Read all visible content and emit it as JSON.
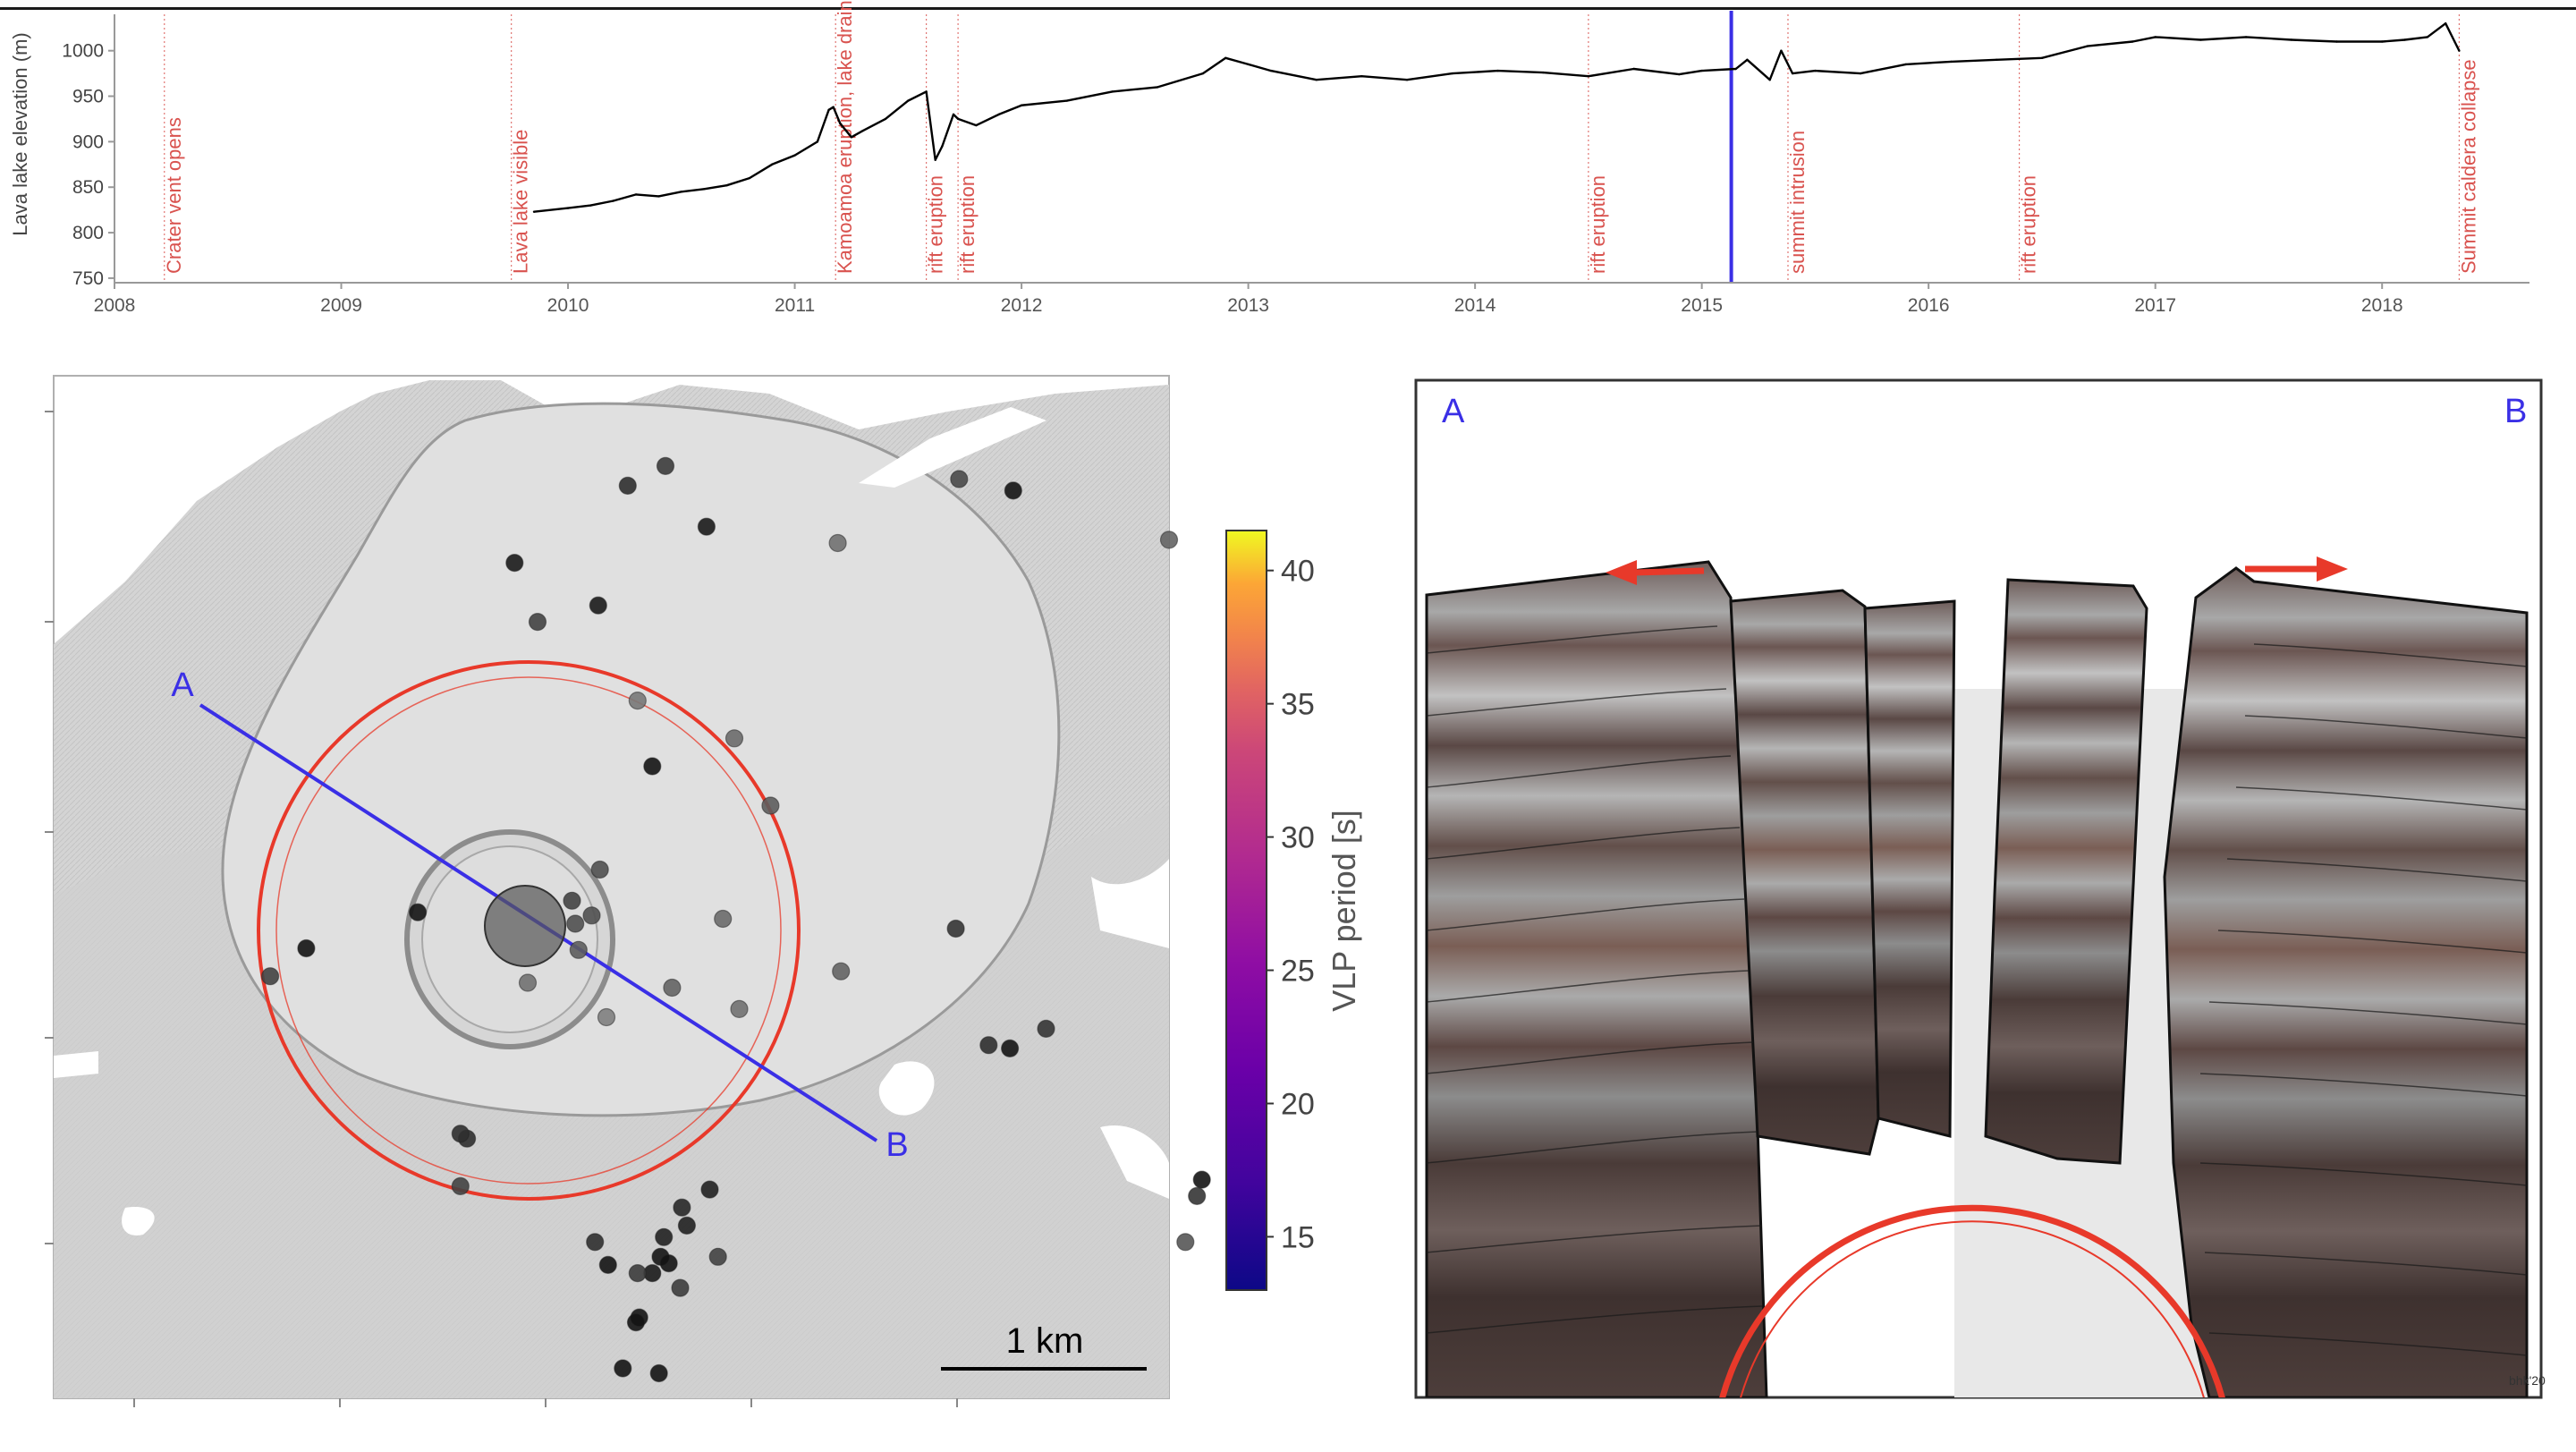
{
  "chart_data": [
    {
      "type": "line",
      "ylabel": "Lava lake elevation (m)",
      "xlabel": "",
      "xlim": [
        2008,
        2018.65
      ],
      "ylim": [
        745,
        1040
      ],
      "xticks": [
        "2008",
        "2009",
        "2010",
        "2011",
        "2012",
        "2013",
        "2014",
        "2015",
        "2016",
        "2017",
        "2018"
      ],
      "yticks": [
        "750",
        "800",
        "850",
        "900",
        "950",
        "1000"
      ],
      "series_color": "#000000",
      "series": [
        {
          "x": [
            2009.85,
            2010.0,
            2010.1,
            2010.2,
            2010.3,
            2010.4,
            2010.5,
            2010.6,
            2010.7,
            2010.8,
            2010.9,
            2011.0,
            2011.1,
            2011.15,
            2011.17,
            2011.2,
            2011.25,
            2011.3,
            2011.4,
            2011.5,
            2011.58,
            2011.62,
            2011.65,
            2011.7,
            2011.72,
            2011.8,
            2011.9,
            2012.0,
            2012.2,
            2012.4,
            2012.6,
            2012.8,
            2012.9,
            2013.0,
            2013.1,
            2013.3,
            2013.5,
            2013.7,
            2013.9,
            2014.1,
            2014.3,
            2014.5,
            2014.7,
            2014.9,
            2015.0,
            2015.15,
            2015.2,
            2015.3,
            2015.35,
            2015.4,
            2015.5,
            2015.7,
            2015.9,
            2016.1,
            2016.3,
            2016.5,
            2016.7,
            2016.9,
            2017.0,
            2017.2,
            2017.4,
            2017.6,
            2017.8,
            2018.0,
            2018.1,
            2018.2,
            2018.28,
            2018.32,
            2018.34
          ],
          "y": [
            823,
            827,
            830,
            835,
            842,
            840,
            845,
            848,
            852,
            860,
            875,
            885,
            900,
            935,
            938,
            920,
            905,
            912,
            925,
            945,
            955,
            880,
            895,
            930,
            925,
            918,
            930,
            940,
            945,
            955,
            960,
            975,
            992,
            985,
            978,
            968,
            972,
            968,
            975,
            978,
            976,
            972,
            980,
            974,
            978,
            980,
            990,
            968,
            1000,
            975,
            978,
            975,
            985,
            988,
            990,
            992,
            1005,
            1010,
            1015,
            1012,
            1015,
            1012,
            1010,
            1010,
            1012,
            1015,
            1030,
            1010,
            1000
          ]
        }
      ],
      "events": [
        {
          "x": 2008.22,
          "label": "Crater vent opens"
        },
        {
          "x": 2009.75,
          "label": "Lava lake visible"
        },
        {
          "x": 2011.18,
          "label": "Kamoamoa eruption, lake drains"
        },
        {
          "x": 2011.58,
          "label": "rift eruption"
        },
        {
          "x": 2011.72,
          "label": "rift eruption"
        },
        {
          "x": 2014.5,
          "label": "rift eruption"
        },
        {
          "x": 2015.38,
          "label": "summit intrusion"
        },
        {
          "x": 2016.4,
          "label": "rift eruption"
        },
        {
          "x": 2018.34,
          "label": "Summit caldera collapse"
        }
      ],
      "marker": {
        "x": 2015.13,
        "color": "#3a2fe6"
      },
      "event_color": "#d9534f"
    },
    {
      "type": "scatter",
      "xlabel": "",
      "ylabel": "",
      "colorbar": {
        "label": "VLP period [s]",
        "ticks": [
          "15",
          "20",
          "25",
          "30",
          "35",
          "40"
        ],
        "range": [
          13,
          41.5
        ],
        "colormap": "plasma"
      },
      "scale_bar_label": "1 km",
      "profile_labels": {
        "start": "A",
        "end": "B"
      },
      "profile_color": "#3a2fe6",
      "ring_color": "#e8392a",
      "point_values": [
        {
          "x": 350,
          "y": 67,
          "v": 17
        },
        {
          "x": 373,
          "y": 55,
          "v": 19
        },
        {
          "x": 552,
          "y": 63,
          "v": 21
        },
        {
          "x": 585,
          "y": 70,
          "v": 13
        },
        {
          "x": 398,
          "y": 92,
          "v": 14
        },
        {
          "x": 478,
          "y": 102,
          "v": 27
        },
        {
          "x": 680,
          "y": 100,
          "v": 25
        },
        {
          "x": 281,
          "y": 114,
          "v": 14
        },
        {
          "x": 295,
          "y": 150,
          "v": 20
        },
        {
          "x": 332,
          "y": 140,
          "v": 14
        },
        {
          "x": 356,
          "y": 198,
          "v": 28
        },
        {
          "x": 365,
          "y": 238,
          "v": 13
        },
        {
          "x": 415,
          "y": 221,
          "v": 26
        },
        {
          "x": 437,
          "y": 262,
          "v": 24
        },
        {
          "x": 333,
          "y": 301,
          "v": 22
        },
        {
          "x": 316,
          "y": 320,
          "v": 20
        },
        {
          "x": 328,
          "y": 329,
          "v": 22
        },
        {
          "x": 318,
          "y": 334,
          "v": 22
        },
        {
          "x": 320,
          "y": 350,
          "v": 24
        },
        {
          "x": 222,
          "y": 327,
          "v": 13
        },
        {
          "x": 154,
          "y": 349,
          "v": 13
        },
        {
          "x": 132,
          "y": 366,
          "v": 20
        },
        {
          "x": 289,
          "y": 370,
          "v": 27
        },
        {
          "x": 377,
          "y": 373,
          "v": 25
        },
        {
          "x": 408,
          "y": 331,
          "v": 26
        },
        {
          "x": 418,
          "y": 386,
          "v": 27
        },
        {
          "x": 480,
          "y": 363,
          "v": 25
        },
        {
          "x": 337,
          "y": 391,
          "v": 29
        },
        {
          "x": 550,
          "y": 337,
          "v": 18
        },
        {
          "x": 570,
          "y": 408,
          "v": 17
        },
        {
          "x": 583,
          "y": 410,
          "v": 13
        },
        {
          "x": 605,
          "y": 398,
          "v": 18
        },
        {
          "x": 252,
          "y": 465,
          "v": 17
        },
        {
          "x": 248,
          "y": 494,
          "v": 20
        },
        {
          "x": 400,
          "y": 496,
          "v": 15
        },
        {
          "x": 330,
          "y": 528,
          "v": 17
        },
        {
          "x": 383,
          "y": 507,
          "v": 16
        },
        {
          "x": 386,
          "y": 518,
          "v": 15
        },
        {
          "x": 372,
          "y": 525,
          "v": 15
        },
        {
          "x": 370,
          "y": 537,
          "v": 13
        },
        {
          "x": 375,
          "y": 541,
          "v": 13
        },
        {
          "x": 365,
          "y": 547,
          "v": 14
        },
        {
          "x": 356,
          "y": 547,
          "v": 19
        },
        {
          "x": 382,
          "y": 556,
          "v": 19
        },
        {
          "x": 357,
          "y": 574,
          "v": 13
        },
        {
          "x": 355,
          "y": 577,
          "v": 13
        },
        {
          "x": 338,
          "y": 542,
          "v": 13
        },
        {
          "x": 405,
          "y": 537,
          "v": 20
        },
        {
          "x": 347,
          "y": 605,
          "v": 13
        },
        {
          "x": 369,
          "y": 608,
          "v": 13
        },
        {
          "x": 690,
          "y": 528,
          "v": 23
        },
        {
          "x": 700,
          "y": 490,
          "v": 13
        },
        {
          "x": 697,
          "y": 500,
          "v": 18
        },
        {
          "x": 248,
          "y": 462,
          "v": 17
        }
      ]
    }
  ],
  "section": {
    "corner_left": "A",
    "corner_right": "B",
    "signature": "bhk'20"
  }
}
